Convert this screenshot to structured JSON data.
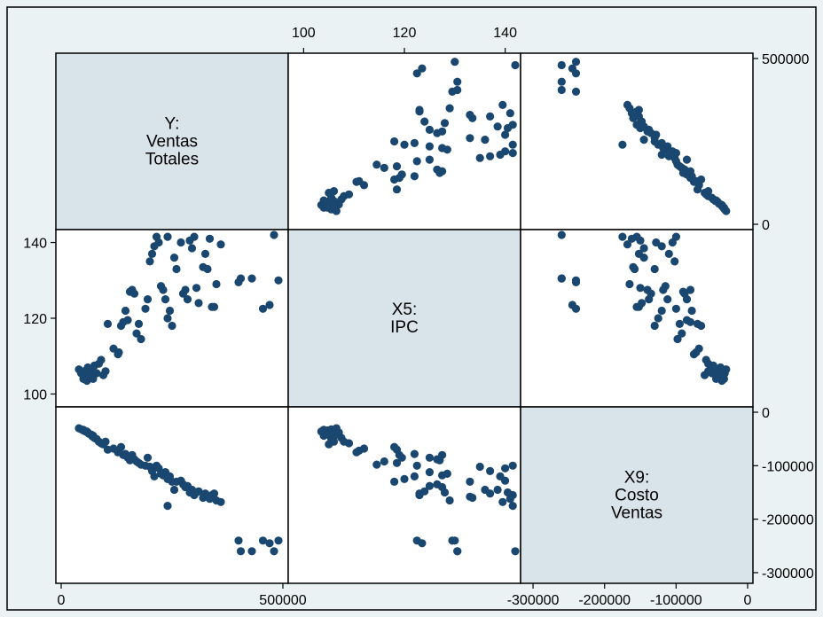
{
  "colors": {
    "background": "#eaf2f3",
    "diagonal_fill": "#d8e4ea",
    "marker": "#1a476f"
  },
  "chart_data": {
    "type": "scatter",
    "variables": [
      {
        "lines": [
          "Y:",
          "Ventas",
          "Totales"
        ]
      },
      {
        "lines": [
          "X5:",
          "IPC"
        ]
      },
      {
        "lines": [
          "X9:",
          "Costo",
          "Ventas"
        ]
      }
    ],
    "ranges": [
      [
        0,
        500000
      ],
      [
        98,
        142
      ],
      [
        -310000,
        0
      ]
    ],
    "ticks": {
      "y_right": [
        "0",
        "500000"
      ],
      "ipc_top": [
        "100",
        "120",
        "140"
      ],
      "ipc_left": [
        "100",
        "120",
        "140"
      ],
      "y_bottom": [
        "0",
        "500000"
      ],
      "x9_bottom": [
        "-300000",
        "-200000",
        "-100000",
        "0"
      ],
      "x9_right": [
        "0",
        "-100000",
        "-200000",
        "-300000"
      ]
    },
    "observations": [
      [
        40000,
        106.5,
        -30000
      ],
      [
        45000,
        105.5,
        -32000
      ],
      [
        50000,
        104.8,
        -34000
      ],
      [
        55000,
        106.2,
        -36000
      ],
      [
        60000,
        107.0,
        -38000
      ],
      [
        62000,
        105.2,
        -40000
      ],
      [
        68000,
        104.5,
        -42000
      ],
      [
        70000,
        106.0,
        -45000
      ],
      [
        75000,
        107.5,
        -48000
      ],
      [
        80000,
        105.5,
        -50000
      ],
      [
        85000,
        108.0,
        -55000
      ],
      [
        90000,
        109.0,
        -58000
      ],
      [
        95000,
        105.0,
        -60000
      ],
      [
        100000,
        106.0,
        -55000
      ],
      [
        105000,
        118.5,
        -70000
      ],
      [
        130000,
        111.0,
        -72000
      ],
      [
        135000,
        118.0,
        -65000
      ],
      [
        140000,
        119.0,
        -80000
      ],
      [
        145000,
        122.0,
        -78000
      ],
      [
        150000,
        119.5,
        -85000
      ],
      [
        155000,
        127.0,
        -90000
      ],
      [
        160000,
        127.5,
        -80000
      ],
      [
        165000,
        126.5,
        -88000
      ],
      [
        170000,
        116.0,
        -92000
      ],
      [
        175000,
        118.5,
        -95000
      ],
      [
        180000,
        114.5,
        -98000
      ],
      [
        190000,
        122.5,
        -100000
      ],
      [
        195000,
        125.0,
        -85000
      ],
      [
        200000,
        135.0,
        -102000
      ],
      [
        205000,
        137.0,
        -110000
      ],
      [
        210000,
        139.0,
        -120000
      ],
      [
        215000,
        141.5,
        -100000
      ],
      [
        220000,
        140.0,
        -105000
      ],
      [
        225000,
        128.5,
        -115000
      ],
      [
        230000,
        127.5,
        -118000
      ],
      [
        235000,
        125.0,
        -112000
      ],
      [
        240000,
        120.0,
        -125000
      ],
      [
        245000,
        122.0,
        -120000
      ],
      [
        250000,
        118.0,
        -130000
      ],
      [
        255000,
        136.0,
        -145000
      ],
      [
        260000,
        133.0,
        -130000
      ],
      [
        270000,
        140.0,
        -128000
      ],
      [
        275000,
        126.5,
        -135000
      ],
      [
        280000,
        127.5,
        -140000
      ],
      [
        285000,
        125.0,
        -138000
      ],
      [
        290000,
        140.5,
        -150000
      ],
      [
        295000,
        138.5,
        -145000
      ],
      [
        300000,
        141.5,
        -155000
      ],
      [
        305000,
        128.0,
        -150000
      ],
      [
        310000,
        124.0,
        -148000
      ],
      [
        320000,
        133.5,
        -160000
      ],
      [
        325000,
        137.0,
        -152000
      ],
      [
        330000,
        133.0,
        -158000
      ],
      [
        335000,
        141.0,
        -162000
      ],
      [
        340000,
        123.0,
        -155000
      ],
      [
        345000,
        123.0,
        -152000
      ],
      [
        350000,
        129.0,
        -165000
      ],
      [
        360000,
        139.5,
        -168000
      ],
      [
        240000,
        141.5,
        -175000
      ],
      [
        400000,
        129.5,
        -240000
      ],
      [
        405000,
        130.5,
        -260000
      ],
      [
        430000,
        130.5,
        -260000
      ],
      [
        455000,
        122.5,
        -240000
      ],
      [
        470000,
        123.5,
        -245000
      ],
      [
        480000,
        142.0,
        -260000
      ],
      [
        490000,
        130.0,
        -240000
      ],
      [
        50000,
        104.0,
        -33000
      ],
      [
        58000,
        103.5,
        -36000
      ],
      [
        72000,
        104.0,
        -44000
      ],
      [
        118000,
        112.0,
        -68000
      ],
      [
        128000,
        110.5,
        -75000
      ]
    ]
  }
}
